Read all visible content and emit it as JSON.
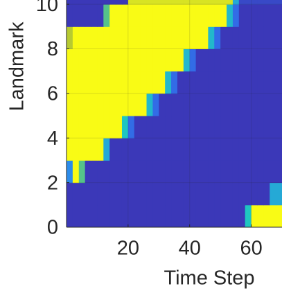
{
  "chart_data": {
    "type": "heatmap",
    "xlabel": "Time Step",
    "ylabel": "Landmark",
    "xlim": [
      0,
      70
    ],
    "ylim": [
      0,
      10.19
    ],
    "xticks": [
      20,
      40,
      60
    ],
    "yticks": [
      0,
      2,
      4,
      6,
      8,
      10
    ],
    "grid": true,
    "colormap": [
      "#3e26a8",
      "#2f7ef6",
      "#1fc6c0",
      "#a6be38",
      "#f9fb15"
    ],
    "clim": [
      0,
      1
    ],
    "xbins": [
      0,
      2,
      4,
      6,
      8,
      10,
      12,
      14,
      16,
      18,
      20,
      22,
      24,
      26,
      28,
      30,
      32,
      34,
      36,
      38,
      40,
      42,
      44,
      46,
      48,
      50,
      52,
      54,
      56,
      58,
      60,
      62,
      64,
      66,
      68,
      70
    ],
    "ybins": [
      0,
      1,
      2,
      3,
      4,
      5,
      6,
      7,
      8,
      9,
      10,
      11
    ],
    "z": [
      [
        0.05,
        0.05,
        0.05,
        0.05,
        0.05,
        0.05,
        0.05,
        0.05,
        0.05,
        0.05,
        0.05,
        0.05,
        0.05,
        0.05,
        0.05,
        0.05,
        0.05,
        0.05,
        0.05,
        0.05,
        0.05,
        0.05,
        0.05,
        0.05,
        0.05,
        0.05,
        0.05,
        0.05,
        0.05,
        0.5,
        1,
        1,
        1,
        1,
        1
      ],
      [
        0.05,
        0.05,
        0.05,
        0.05,
        0.05,
        0.05,
        0.05,
        0.05,
        0.05,
        0.05,
        0.05,
        0.05,
        0.05,
        0.05,
        0.05,
        0.05,
        0.05,
        0.05,
        0.05,
        0.05,
        0.05,
        0.05,
        0.05,
        0.05,
        0.05,
        0.05,
        0.05,
        0.05,
        0.05,
        0.05,
        0.05,
        0.05,
        0.05,
        0.4,
        0.4
      ],
      [
        0.3,
        1,
        0.6,
        0.05,
        0.05,
        0.05,
        0.05,
        0.05,
        0.05,
        0.05,
        0.05,
        0.05,
        0.05,
        0.05,
        0.05,
        0.05,
        0.05,
        0.05,
        0.05,
        0.05,
        0.05,
        0.05,
        0.05,
        0.05,
        0.05,
        0.05,
        0.05,
        0.05,
        0.05,
        0.05,
        0.05,
        0.05,
        0.05,
        0.05,
        0.05
      ],
      [
        1,
        1,
        1,
        1,
        1,
        1,
        0.4,
        0.05,
        0.05,
        0.05,
        0.05,
        0.05,
        0.05,
        0.05,
        0.05,
        0.05,
        0.05,
        0.05,
        0.05,
        0.05,
        0.05,
        0.05,
        0.05,
        0.05,
        0.05,
        0.05,
        0.05,
        0.05,
        0.05,
        0.05,
        0.05,
        0.05,
        0.05,
        0.05,
        0.05
      ],
      [
        1,
        1,
        1,
        1,
        1,
        1,
        1,
        1,
        1,
        0.5,
        0.2,
        0.05,
        0.05,
        0.05,
        0.05,
        0.05,
        0.05,
        0.05,
        0.05,
        0.05,
        0.05,
        0.05,
        0.05,
        0.05,
        0.05,
        0.05,
        0.05,
        0.05,
        0.05,
        0.05,
        0.05,
        0.05,
        0.05,
        0.05,
        0.05
      ],
      [
        1,
        1,
        1,
        1,
        1,
        1,
        1,
        1,
        1,
        1,
        1,
        1,
        1,
        0.45,
        0.2,
        0.05,
        0.05,
        0.05,
        0.05,
        0.05,
        0.05,
        0.05,
        0.05,
        0.05,
        0.05,
        0.05,
        0.05,
        0.05,
        0.05,
        0.05,
        0.05,
        0.05,
        0.05,
        0.05,
        0.05
      ],
      [
        1,
        1,
        1,
        1,
        1,
        1,
        1,
        1,
        1,
        1,
        1,
        1,
        1,
        1,
        1,
        1,
        0.45,
        0.2,
        0.05,
        0.05,
        0.05,
        0.05,
        0.05,
        0.05,
        0.05,
        0.05,
        0.05,
        0.05,
        0.05,
        0.05,
        0.05,
        0.05,
        0.05,
        0.05,
        0.05
      ],
      [
        1,
        1,
        1,
        1,
        1,
        1,
        1,
        1,
        1,
        1,
        1,
        1,
        1,
        1,
        1,
        1,
        1,
        1,
        1,
        0.45,
        0.2,
        0.05,
        0.05,
        0.05,
        0.05,
        0.05,
        0.05,
        0.05,
        0.05,
        0.05,
        0.05,
        0.05,
        0.05,
        0.05,
        0.05
      ],
      [
        0.8,
        1,
        1,
        1,
        1,
        1,
        1,
        1,
        1,
        1,
        1,
        1,
        1,
        1,
        1,
        1,
        1,
        1,
        1,
        1,
        1,
        1,
        1,
        0.45,
        0.2,
        0.05,
        0.05,
        0.05,
        0.05,
        0.05,
        0.05,
        0.05,
        0.05,
        0.05,
        0.05
      ],
      [
        0.05,
        0.05,
        0.05,
        0.05,
        0.05,
        0.05,
        0.6,
        1,
        1,
        1,
        1,
        1,
        1,
        1,
        1,
        1,
        1,
        1,
        1,
        1,
        1,
        1,
        1,
        1,
        1,
        1,
        0.45,
        0.2,
        0.05,
        0.05,
        0.05,
        0.05,
        0.05,
        0.05,
        0.05
      ],
      [
        0.05,
        0.05,
        0.05,
        0.05,
        0.05,
        0.05,
        0.05,
        0.05,
        0.05,
        0.05,
        0.9,
        0.9,
        0.9,
        0.9,
        0.9,
        0.9,
        0.9,
        0.9,
        0.9,
        0.9,
        0.9,
        0.9,
        0.9,
        0.9,
        0.9,
        0.9,
        0.9,
        0.4,
        0.1,
        0.1,
        0.1,
        0.1,
        0.1,
        0.1,
        0.1
      ]
    ]
  }
}
